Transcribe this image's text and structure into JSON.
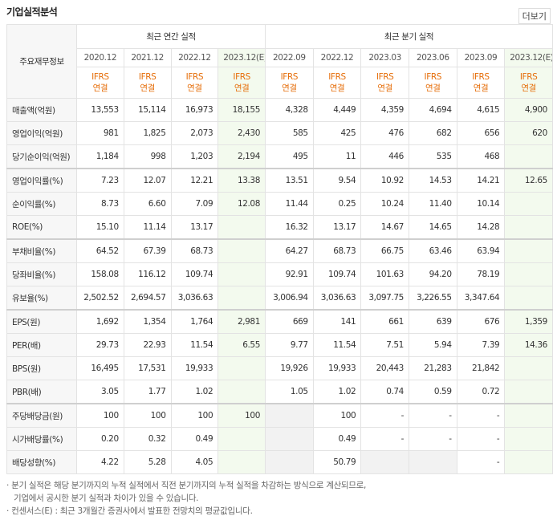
{
  "header": {
    "title": "기업실적분석",
    "more": "더보기"
  },
  "table": {
    "corner": "주요재무정보",
    "annual_group": "최근 연간 실적",
    "quarter_group": "최근 분기 실적",
    "periods": [
      "2020.12",
      "2021.12",
      "2022.12",
      "2023.12(E)",
      "2022.09",
      "2022.12",
      "2023.03",
      "2023.06",
      "2023.09",
      "2023.12(E)"
    ],
    "basis": [
      [
        "IFRS",
        "연결"
      ],
      [
        "IFRS",
        "연결"
      ],
      [
        "IFRS",
        "연결"
      ],
      [
        "IFRS",
        "연결"
      ],
      [
        "IFRS",
        "연결"
      ],
      [
        "IFRS",
        "연결"
      ],
      [
        "IFRS",
        "연결"
      ],
      [
        "IFRS",
        "연결"
      ],
      [
        "IFRS",
        "연결"
      ],
      [
        "IFRS",
        "연결"
      ]
    ],
    "rows": [
      [
        "매출액(억원)",
        "13,553",
        "15,114",
        "16,973",
        "18,155",
        "4,328",
        "4,449",
        "4,359",
        "4,694",
        "4,615",
        "4,900"
      ],
      [
        "영업이익(억원)",
        "981",
        "1,825",
        "2,073",
        "2,430",
        "585",
        "425",
        "476",
        "682",
        "656",
        "620"
      ],
      [
        "당기순이익(억원)",
        "1,184",
        "998",
        "1,203",
        "2,194",
        "495",
        "11",
        "446",
        "535",
        "468",
        null
      ],
      [
        "영업이익률(%)",
        "7.23",
        "12.07",
        "12.21",
        "13.38",
        "13.51",
        "9.54",
        "10.92",
        "14.53",
        "14.21",
        "12.65"
      ],
      [
        "순이익률(%)",
        "8.73",
        "6.60",
        "7.09",
        "12.08",
        "11.44",
        "0.25",
        "10.24",
        "11.40",
        "10.14",
        null
      ],
      [
        "ROE(%)",
        "15.10",
        "11.14",
        "13.17",
        null,
        "16.32",
        "13.17",
        "14.67",
        "14.65",
        "14.28",
        null
      ],
      [
        "부채비율(%)",
        "64.52",
        "67.39",
        "68.73",
        null,
        "64.27",
        "68.73",
        "66.75",
        "63.46",
        "63.94",
        null
      ],
      [
        "당좌비율(%)",
        "158.08",
        "116.12",
        "109.74",
        null,
        "92.91",
        "109.74",
        "101.63",
        "94.20",
        "78.19",
        null
      ],
      [
        "유보율(%)",
        "2,502.52",
        "2,694.57",
        "3,036.63",
        null,
        "3,006.94",
        "3,036.63",
        "3,097.75",
        "3,226.55",
        "3,347.64",
        null
      ],
      [
        "EPS(원)",
        "1,692",
        "1,354",
        "1,764",
        "2,981",
        "669",
        "141",
        "661",
        "639",
        "676",
        "1,359"
      ],
      [
        "PER(배)",
        "29.73",
        "22.93",
        "11.54",
        "6.55",
        "9.77",
        "11.54",
        "7.51",
        "5.94",
        "7.39",
        "14.36"
      ],
      [
        "BPS(원)",
        "16,495",
        "17,531",
        "19,933",
        null,
        "19,926",
        "19,933",
        "20,443",
        "21,283",
        "21,842",
        null
      ],
      [
        "PBR(배)",
        "3.05",
        "1.77",
        "1.02",
        null,
        "1.05",
        "1.02",
        "0.74",
        "0.59",
        "0.72",
        null
      ],
      [
        "주당배당금(원)",
        "100",
        "100",
        "100",
        "100",
        null,
        "100",
        "-",
        "-",
        "-",
        null
      ],
      [
        "시가배당률(%)",
        "0.20",
        "0.32",
        "0.49",
        null,
        null,
        "0.49",
        "-",
        "-",
        "-",
        null
      ],
      [
        "배당성향(%)",
        "4.22",
        "5.28",
        "4.05",
        null,
        null,
        "50.79",
        null,
        null,
        "-",
        null
      ]
    ]
  },
  "notes": [
    "분기 실적은 해당 분기까지의 누적 실적에서 직전 분기까지의 누적 실적을 차감하는 방식으로 계산되므로,",
    "기업에서 공시한 분기 실적과 차이가 있을 수 있습니다.",
    "컨센서스(E) : 최근 3개월간 증권사에서 발표한 전망치의 평균값입니다."
  ]
}
